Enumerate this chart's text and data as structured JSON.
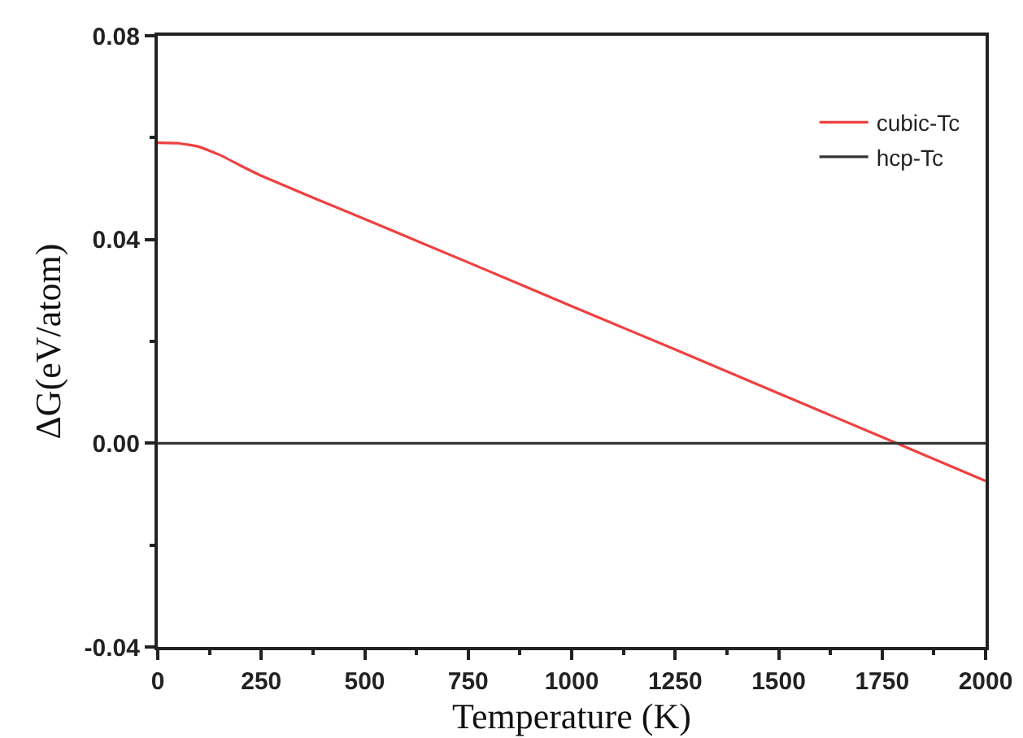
{
  "chart_data": {
    "type": "line",
    "xlabel": "Temperature (K)",
    "ylabel": "ΔG(eV/atom)",
    "xlim": [
      0,
      2000
    ],
    "xticks": [
      0,
      250,
      500,
      750,
      1000,
      1250,
      1500,
      1750,
      2000
    ],
    "ylim": [
      -0.04,
      0.08
    ],
    "yticks": [
      -0.04,
      {
        "value": 0,
        "label": "0.00"
      },
      0.04,
      0.08
    ],
    "grid": false,
    "legend": "top right",
    "marker": "none",
    "line_style": "solid",
    "series": [
      {
        "name": "cubic-Tc",
        "color": "#f04040",
        "x": [
          0,
          50,
          100,
          150,
          200,
          250,
          500,
          750,
          1000,
          1250,
          1500,
          1750,
          2000
        ],
        "values": [
          0.059,
          0.0589,
          0.0582,
          0.0566,
          0.0545,
          0.0525,
          0.044,
          0.0355,
          0.0269,
          0.0184,
          0.0098,
          0.0012,
          -0.0074
        ]
      },
      {
        "name": "hcp-Tc",
        "color": "#333333",
        "x": [
          0,
          2000
        ],
        "values": [
          0,
          0
        ]
      }
    ]
  }
}
